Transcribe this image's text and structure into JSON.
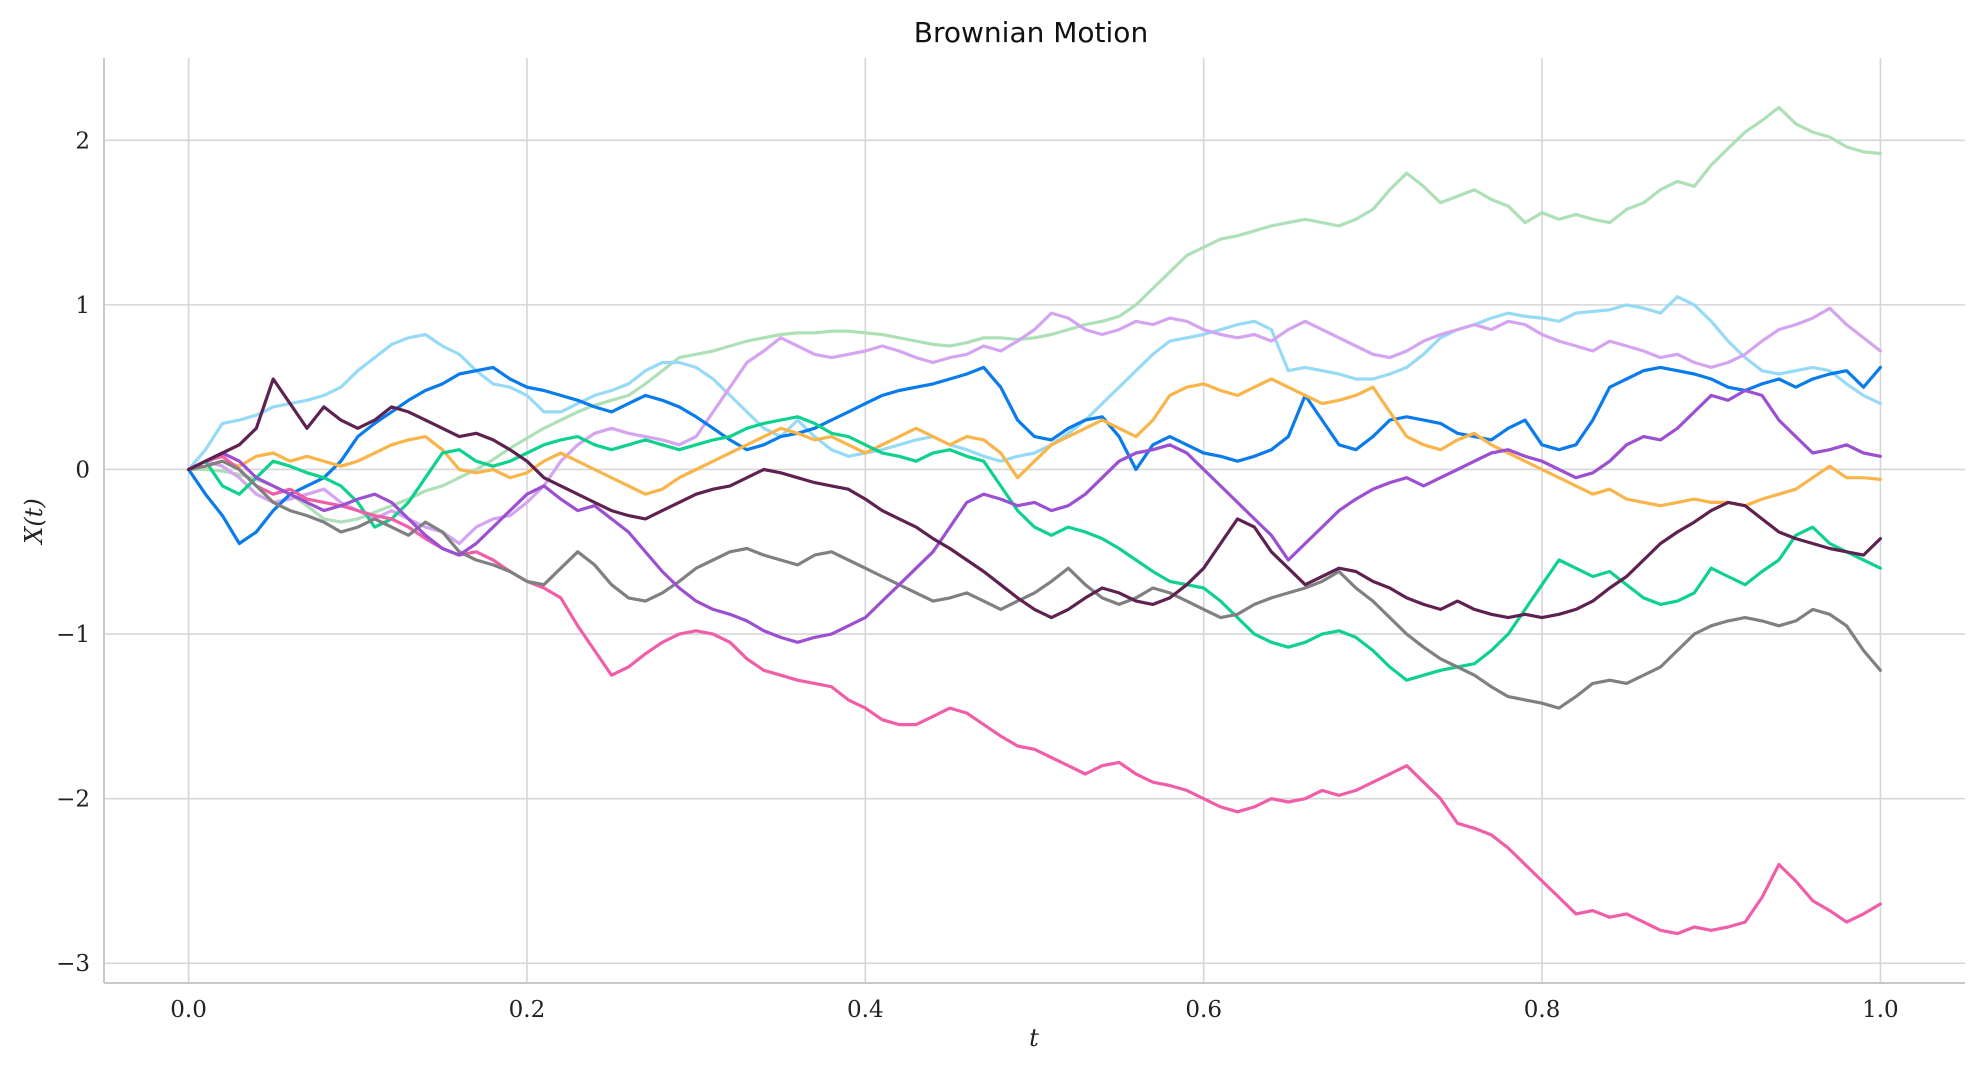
{
  "chart_data": {
    "type": "line",
    "title": "Brownian Motion",
    "xlabel": "t",
    "ylabel": "X(t)",
    "xlim": [
      -0.05,
      1.05
    ],
    "ylim": [
      -3.12,
      2.5
    ],
    "xticks": [
      0.0,
      0.2,
      0.4,
      0.6,
      0.8,
      1.0
    ],
    "xtick_labels": [
      "0.0",
      "0.2",
      "0.4",
      "0.6",
      "0.8",
      "1.0"
    ],
    "yticks": [
      -3,
      -2,
      -1,
      0,
      1,
      2
    ],
    "ytick_labels": [
      "−3",
      "−2",
      "−1",
      "0",
      "1",
      "2"
    ],
    "grid": true,
    "series_step": 0.01,
    "series": [
      {
        "color": "#aee0b8",
        "values": [
          0,
          0,
          -0.01,
          -0.03,
          -0.06,
          -0.1,
          -0.15,
          -0.22,
          -0.3,
          -0.32,
          -0.3,
          -0.26,
          -0.22,
          -0.18,
          -0.13,
          -0.1,
          -0.05,
          0,
          0.06,
          0.13,
          0.19,
          0.25,
          0.3,
          0.35,
          0.39,
          0.42,
          0.45,
          0.52,
          0.6,
          0.68,
          0.7,
          0.72,
          0.75,
          0.78,
          0.8,
          0.82,
          0.83,
          0.83,
          0.84,
          0.84,
          0.83,
          0.82,
          0.8,
          0.78,
          0.76,
          0.75,
          0.77,
          0.8,
          0.8,
          0.79,
          0.8,
          0.82,
          0.85,
          0.88,
          0.9,
          0.93,
          1.0,
          1.1,
          1.2,
          1.3,
          1.35,
          1.4,
          1.42,
          1.45,
          1.48,
          1.5,
          1.52,
          1.5,
          1.48,
          1.52,
          1.58,
          1.7,
          1.8,
          1.72,
          1.62,
          1.66,
          1.7,
          1.64,
          1.6,
          1.5,
          1.56,
          1.52,
          1.55,
          1.52,
          1.5,
          1.58,
          1.62,
          1.7,
          1.75,
          1.72,
          1.85,
          1.95,
          2.05,
          2.12,
          2.2,
          2.1,
          2.05,
          2.02,
          1.96,
          1.93,
          1.92
        ]
      },
      {
        "color": "#97daf6",
        "values": [
          0,
          0.12,
          0.28,
          0.3,
          0.33,
          0.38,
          0.4,
          0.42,
          0.45,
          0.5,
          0.6,
          0.68,
          0.76,
          0.8,
          0.82,
          0.75,
          0.7,
          0.6,
          0.52,
          0.5,
          0.45,
          0.35,
          0.35,
          0.4,
          0.45,
          0.48,
          0.52,
          0.6,
          0.65,
          0.65,
          0.62,
          0.55,
          0.45,
          0.35,
          0.25,
          0.2,
          0.3,
          0.2,
          0.12,
          0.08,
          0.1,
          0.12,
          0.15,
          0.18,
          0.2,
          0.15,
          0.12,
          0.08,
          0.05,
          0.08,
          0.1,
          0.15,
          0.22,
          0.3,
          0.4,
          0.5,
          0.6,
          0.7,
          0.78,
          0.8,
          0.82,
          0.85,
          0.88,
          0.9,
          0.85,
          0.6,
          0.62,
          0.6,
          0.58,
          0.55,
          0.55,
          0.58,
          0.62,
          0.7,
          0.8,
          0.85,
          0.88,
          0.92,
          0.95,
          0.93,
          0.92,
          0.9,
          0.95,
          0.96,
          0.97,
          1.0,
          0.98,
          0.95,
          1.05,
          1.0,
          0.9,
          0.78,
          0.68,
          0.6,
          0.58,
          0.6,
          0.62,
          0.6,
          0.52,
          0.45,
          0.4
        ]
      },
      {
        "color": "#d4a4f0",
        "values": [
          0,
          0.05,
          0.02,
          -0.05,
          -0.15,
          -0.2,
          -0.18,
          -0.15,
          -0.12,
          -0.2,
          -0.25,
          -0.3,
          -0.25,
          -0.3,
          -0.35,
          -0.38,
          -0.45,
          -0.35,
          -0.3,
          -0.28,
          -0.2,
          -0.1,
          0.05,
          0.15,
          0.22,
          0.25,
          0.22,
          0.2,
          0.18,
          0.15,
          0.2,
          0.35,
          0.5,
          0.65,
          0.72,
          0.8,
          0.75,
          0.7,
          0.68,
          0.7,
          0.72,
          0.75,
          0.72,
          0.68,
          0.65,
          0.68,
          0.7,
          0.75,
          0.72,
          0.78,
          0.85,
          0.95,
          0.92,
          0.85,
          0.82,
          0.85,
          0.9,
          0.88,
          0.92,
          0.9,
          0.85,
          0.82,
          0.8,
          0.82,
          0.78,
          0.85,
          0.9,
          0.85,
          0.8,
          0.75,
          0.7,
          0.68,
          0.72,
          0.78,
          0.82,
          0.85,
          0.88,
          0.85,
          0.9,
          0.88,
          0.82,
          0.78,
          0.75,
          0.72,
          0.78,
          0.75,
          0.72,
          0.68,
          0.7,
          0.65,
          0.62,
          0.65,
          0.7,
          0.78,
          0.85,
          0.88,
          0.92,
          0.98,
          0.88,
          0.8,
          0.72
        ]
      },
      {
        "color": "#0a7bea",
        "values": [
          0,
          -0.15,
          -0.28,
          -0.45,
          -0.38,
          -0.25,
          -0.15,
          -0.1,
          -0.05,
          0.05,
          0.2,
          0.28,
          0.35,
          0.42,
          0.48,
          0.52,
          0.58,
          0.6,
          0.62,
          0.55,
          0.5,
          0.48,
          0.45,
          0.42,
          0.38,
          0.35,
          0.4,
          0.45,
          0.42,
          0.38,
          0.32,
          0.25,
          0.18,
          0.12,
          0.15,
          0.2,
          0.22,
          0.25,
          0.3,
          0.35,
          0.4,
          0.45,
          0.48,
          0.5,
          0.52,
          0.55,
          0.58,
          0.62,
          0.5,
          0.3,
          0.2,
          0.18,
          0.25,
          0.3,
          0.32,
          0.2,
          0.0,
          0.15,
          0.2,
          0.15,
          0.1,
          0.08,
          0.05,
          0.08,
          0.12,
          0.2,
          0.45,
          0.3,
          0.15,
          0.12,
          0.2,
          0.3,
          0.32,
          0.3,
          0.28,
          0.22,
          0.2,
          0.18,
          0.25,
          0.3,
          0.15,
          0.12,
          0.15,
          0.3,
          0.5,
          0.55,
          0.6,
          0.62,
          0.6,
          0.58,
          0.55,
          0.5,
          0.48,
          0.52,
          0.55,
          0.5,
          0.55,
          0.58,
          0.6,
          0.5,
          0.62
        ]
      },
      {
        "color": "#f9b44a",
        "values": [
          0,
          0.02,
          0.05,
          0.02,
          0.08,
          0.1,
          0.05,
          0.08,
          0.05,
          0.02,
          0.05,
          0.1,
          0.15,
          0.18,
          0.2,
          0.12,
          0.0,
          -0.02,
          0.0,
          -0.05,
          -0.02,
          0.05,
          0.1,
          0.05,
          0.0,
          -0.05,
          -0.1,
          -0.15,
          -0.12,
          -0.05,
          0.0,
          0.05,
          0.1,
          0.15,
          0.2,
          0.25,
          0.22,
          0.18,
          0.2,
          0.15,
          0.1,
          0.15,
          0.2,
          0.25,
          0.2,
          0.15,
          0.2,
          0.18,
          0.1,
          -0.05,
          0.05,
          0.15,
          0.2,
          0.25,
          0.3,
          0.25,
          0.2,
          0.3,
          0.45,
          0.5,
          0.52,
          0.48,
          0.45,
          0.5,
          0.55,
          0.5,
          0.45,
          0.4,
          0.42,
          0.45,
          0.5,
          0.35,
          0.2,
          0.15,
          0.12,
          0.18,
          0.22,
          0.15,
          0.1,
          0.05,
          0.0,
          -0.05,
          -0.1,
          -0.15,
          -0.12,
          -0.18,
          -0.2,
          -0.22,
          -0.2,
          -0.18,
          -0.2,
          -0.2,
          -0.22,
          -0.18,
          -0.15,
          -0.12,
          -0.05,
          0.02,
          -0.05,
          -0.05,
          -0.06
        ]
      },
      {
        "color": "#0fd18e",
        "values": [
          0,
          0.05,
          -0.1,
          -0.15,
          -0.05,
          0.05,
          0.02,
          -0.02,
          -0.05,
          -0.1,
          -0.2,
          -0.35,
          -0.3,
          -0.2,
          -0.05,
          0.1,
          0.12,
          0.05,
          0.02,
          0.05,
          0.1,
          0.15,
          0.18,
          0.2,
          0.15,
          0.12,
          0.15,
          0.18,
          0.15,
          0.12,
          0.15,
          0.18,
          0.2,
          0.25,
          0.28,
          0.3,
          0.32,
          0.28,
          0.22,
          0.2,
          0.15,
          0.1,
          0.08,
          0.05,
          0.1,
          0.12,
          0.08,
          0.05,
          -0.1,
          -0.25,
          -0.35,
          -0.4,
          -0.35,
          -0.38,
          -0.42,
          -0.48,
          -0.55,
          -0.62,
          -0.68,
          -0.7,
          -0.72,
          -0.8,
          -0.9,
          -1.0,
          -1.05,
          -1.08,
          -1.05,
          -1.0,
          -0.98,
          -1.02,
          -1.1,
          -1.2,
          -1.28,
          -1.25,
          -1.22,
          -1.2,
          -1.18,
          -1.1,
          -1.0,
          -0.85,
          -0.7,
          -0.55,
          -0.6,
          -0.65,
          -0.62,
          -0.7,
          -0.78,
          -0.82,
          -0.8,
          -0.75,
          -0.6,
          -0.65,
          -0.7,
          -0.62,
          -0.55,
          -0.4,
          -0.35,
          -0.45,
          -0.5,
          -0.55,
          -0.6
        ]
      },
      {
        "color": "#f15ea8",
        "values": [
          0,
          0.05,
          0.08,
          0.0,
          -0.1,
          -0.15,
          -0.12,
          -0.18,
          -0.2,
          -0.22,
          -0.25,
          -0.28,
          -0.3,
          -0.35,
          -0.42,
          -0.48,
          -0.52,
          -0.5,
          -0.55,
          -0.62,
          -0.68,
          -0.72,
          -0.78,
          -0.95,
          -1.1,
          -1.25,
          -1.2,
          -1.12,
          -1.05,
          -1.0,
          -0.98,
          -1.0,
          -1.05,
          -1.15,
          -1.22,
          -1.25,
          -1.28,
          -1.3,
          -1.32,
          -1.4,
          -1.45,
          -1.52,
          -1.55,
          -1.55,
          -1.5,
          -1.45,
          -1.48,
          -1.55,
          -1.62,
          -1.68,
          -1.7,
          -1.75,
          -1.8,
          -1.85,
          -1.8,
          -1.78,
          -1.85,
          -1.9,
          -1.92,
          -1.95,
          -2.0,
          -2.05,
          -2.08,
          -2.05,
          -2.0,
          -2.02,
          -2.0,
          -1.95,
          -1.98,
          -1.95,
          -1.9,
          -1.85,
          -1.8,
          -1.9,
          -2.0,
          -2.15,
          -2.18,
          -2.22,
          -2.3,
          -2.4,
          -2.5,
          -2.6,
          -2.7,
          -2.68,
          -2.72,
          -2.7,
          -2.75,
          -2.8,
          -2.82,
          -2.78,
          -2.8,
          -2.78,
          -2.75,
          -2.6,
          -2.4,
          -2.5,
          -2.62,
          -2.68,
          -2.75,
          -2.7,
          -2.64
        ]
      },
      {
        "color": "#808080",
        "values": [
          0,
          0.02,
          0.05,
          0.0,
          -0.1,
          -0.2,
          -0.25,
          -0.28,
          -0.32,
          -0.38,
          -0.35,
          -0.3,
          -0.35,
          -0.4,
          -0.32,
          -0.38,
          -0.5,
          -0.55,
          -0.58,
          -0.62,
          -0.68,
          -0.7,
          -0.6,
          -0.5,
          -0.58,
          -0.7,
          -0.78,
          -0.8,
          -0.75,
          -0.68,
          -0.6,
          -0.55,
          -0.5,
          -0.48,
          -0.52,
          -0.55,
          -0.58,
          -0.52,
          -0.5,
          -0.55,
          -0.6,
          -0.65,
          -0.7,
          -0.75,
          -0.8,
          -0.78,
          -0.75,
          -0.8,
          -0.85,
          -0.8,
          -0.75,
          -0.68,
          -0.6,
          -0.7,
          -0.78,
          -0.82,
          -0.78,
          -0.72,
          -0.75,
          -0.8,
          -0.85,
          -0.9,
          -0.88,
          -0.82,
          -0.78,
          -0.75,
          -0.72,
          -0.68,
          -0.62,
          -0.72,
          -0.8,
          -0.9,
          -1.0,
          -1.08,
          -1.15,
          -1.2,
          -1.25,
          -1.32,
          -1.38,
          -1.4,
          -1.42,
          -1.45,
          -1.38,
          -1.3,
          -1.28,
          -1.3,
          -1.25,
          -1.2,
          -1.1,
          -1.0,
          -0.95,
          -0.92,
          -0.9,
          -0.92,
          -0.95,
          -0.92,
          -0.85,
          -0.88,
          -0.95,
          -1.1,
          -1.22
        ]
      },
      {
        "color": "#9b4fd1",
        "values": [
          0,
          0.05,
          0.1,
          0.05,
          -0.05,
          -0.1,
          -0.15,
          -0.2,
          -0.25,
          -0.22,
          -0.18,
          -0.15,
          -0.2,
          -0.3,
          -0.4,
          -0.48,
          -0.52,
          -0.45,
          -0.35,
          -0.25,
          -0.15,
          -0.1,
          -0.18,
          -0.25,
          -0.22,
          -0.3,
          -0.38,
          -0.5,
          -0.62,
          -0.72,
          -0.8,
          -0.85,
          -0.88,
          -0.92,
          -0.98,
          -1.02,
          -1.05,
          -1.02,
          -1.0,
          -0.95,
          -0.9,
          -0.8,
          -0.7,
          -0.6,
          -0.5,
          -0.35,
          -0.2,
          -0.15,
          -0.18,
          -0.22,
          -0.2,
          -0.25,
          -0.22,
          -0.15,
          -0.05,
          0.05,
          0.1,
          0.12,
          0.15,
          0.1,
          0.0,
          -0.1,
          -0.2,
          -0.3,
          -0.4,
          -0.55,
          -0.45,
          -0.35,
          -0.25,
          -0.18,
          -0.12,
          -0.08,
          -0.05,
          -0.1,
          -0.05,
          0.0,
          0.05,
          0.1,
          0.12,
          0.08,
          0.05,
          0.0,
          -0.05,
          -0.02,
          0.05,
          0.15,
          0.2,
          0.18,
          0.25,
          0.35,
          0.45,
          0.42,
          0.48,
          0.45,
          0.3,
          0.2,
          0.1,
          0.12,
          0.15,
          0.1,
          0.08
        ]
      },
      {
        "color": "#5e2250",
        "values": [
          0,
          0.05,
          0.1,
          0.15,
          0.25,
          0.55,
          0.4,
          0.25,
          0.38,
          0.3,
          0.25,
          0.3,
          0.38,
          0.35,
          0.3,
          0.25,
          0.2,
          0.22,
          0.18,
          0.12,
          0.05,
          -0.05,
          -0.1,
          -0.15,
          -0.2,
          -0.25,
          -0.28,
          -0.3,
          -0.25,
          -0.2,
          -0.15,
          -0.12,
          -0.1,
          -0.05,
          0.0,
          -0.02,
          -0.05,
          -0.08,
          -0.1,
          -0.12,
          -0.18,
          -0.25,
          -0.3,
          -0.35,
          -0.42,
          -0.48,
          -0.55,
          -0.62,
          -0.7,
          -0.78,
          -0.85,
          -0.9,
          -0.85,
          -0.78,
          -0.72,
          -0.75,
          -0.8,
          -0.82,
          -0.78,
          -0.7,
          -0.6,
          -0.45,
          -0.3,
          -0.35,
          -0.5,
          -0.6,
          -0.7,
          -0.65,
          -0.6,
          -0.62,
          -0.68,
          -0.72,
          -0.78,
          -0.82,
          -0.85,
          -0.8,
          -0.85,
          -0.88,
          -0.9,
          -0.88,
          -0.9,
          -0.88,
          -0.85,
          -0.8,
          -0.72,
          -0.65,
          -0.55,
          -0.45,
          -0.38,
          -0.32,
          -0.25,
          -0.2,
          -0.22,
          -0.3,
          -0.38,
          -0.42,
          -0.45,
          -0.48,
          -0.5,
          -0.52,
          -0.42
        ]
      }
    ]
  }
}
